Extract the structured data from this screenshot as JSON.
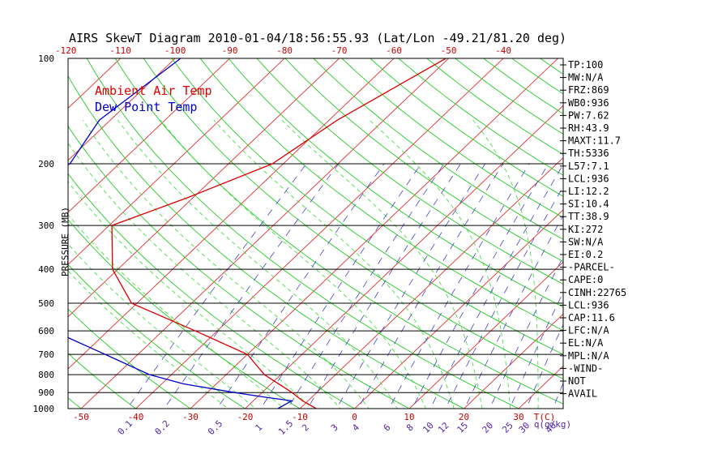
{
  "chart_data": {
    "type": "line",
    "title": "AIRS SkewT Diagram 2010-01-04/18:56:55.93 (Lat/Lon -49.21/81.20 deg)",
    "ylabel": "PRESSURE (MB)",
    "ylim": [
      100,
      1000
    ],
    "y_scale": "log",
    "temperature_ticks_top": [
      "-120",
      "-110",
      "-100",
      "-90",
      "-80",
      "-70",
      "-60",
      "-50",
      "-40"
    ],
    "temperature_ticks_bottom": [
      "-50",
      "-40",
      "-30",
      "-20",
      "-10",
      "0",
      "10",
      "20",
      "30"
    ],
    "temperature_unit": "T(C)",
    "mixing_ratio_ticks": [
      "0.1",
      "0.2",
      "0.5",
      "1",
      "1.5",
      "2",
      "3",
      "4",
      "6",
      "8",
      "10",
      "12",
      "15",
      "20",
      "25",
      "30",
      "40"
    ],
    "mixing_ratio_unit": "q(g/kg)",
    "pressure_ticks": [
      "100",
      "200",
      "300",
      "400",
      "500",
      "600",
      "700",
      "800",
      "900",
      "1000"
    ],
    "grid": true,
    "series": [
      {
        "name": "Ambient Air Temp",
        "color": "#dd0000",
        "pressure": [
          100,
          150,
          200,
          250,
          300,
          400,
          500,
          600,
          700,
          800,
          900,
          950,
          1000
        ],
        "temperature": [
          -50.5,
          -58.5,
          -62,
          -71,
          -79.5,
          -71,
          -61,
          -44,
          -30,
          -23,
          -14.5,
          -11,
          -7
        ]
      },
      {
        "name": "Dew Point Temp",
        "color": "#0000cc",
        "pressure": [
          100,
          150,
          200,
          250,
          300,
          400,
          500,
          600,
          700,
          800,
          850,
          900,
          930,
          950,
          1000
        ],
        "temperature": [
          -99,
          -102,
          -99,
          -104,
          -103,
          -90,
          -79,
          -70,
          -56,
          -44,
          -36,
          -25,
          -18,
          -13,
          -14
        ]
      }
    ],
    "legend": [
      "Ambient Air Temp",
      "Dew Point Temp"
    ],
    "legend_placement": "top-left",
    "stats": [
      "TP:100",
      "MW:N/A",
      "FRZ:869",
      "WB0:936",
      "PW:7.62",
      "RH:43.9",
      "MAXT:11.7",
      "TH:5336",
      "L57:7.1",
      "LCL:936",
      "LI:12.2",
      "SI:10.4",
      "TT:38.9",
      "KI:272",
      "SW:N/A",
      "EI:0.2",
      "-PARCEL-",
      "CAPE:0",
      "CINH:22765",
      "LCL:936",
      "CAP:11.6",
      "LFC:N/A",
      "EL:N/A",
      "MPL:N/A",
      "-WIND-",
      "NOT",
      "AVAIL"
    ],
    "colors": {
      "isotherm": "#e03030",
      "dry_adiabat": "#22cc22",
      "moist_adiabat": "#33dd33",
      "mixing_ratio": "#4444cc",
      "isobar": "#000000",
      "top_ticks": "#cc0000",
      "bottom_ticks": "#cc0000",
      "mixing_ticks": "#5522aa"
    }
  }
}
